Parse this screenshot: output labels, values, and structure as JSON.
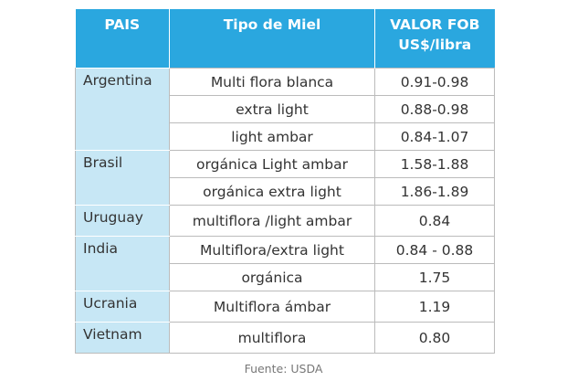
{
  "table": {
    "header": [
      "PAIS",
      "Tipo de Miel",
      [
        "VALOR FOB",
        "US$/libra"
      ]
    ],
    "groups": [
      {
        "country": "Argentina",
        "rows": [
          [
            "Multi flora blanca",
            "0.91-0.98"
          ],
          [
            "extra light",
            "0.88-0.98"
          ],
          [
            "light ambar",
            "0.84-1.07"
          ]
        ]
      },
      {
        "country": "Brasil",
        "rows": [
          [
            "orgánica Light ambar",
            "1.58-1.88"
          ],
          [
            "orgánica extra light",
            "1.86-1.89"
          ]
        ]
      },
      {
        "country": "Uruguay",
        "rows": [
          [
            "multiflora /light ambar",
            "0.84"
          ]
        ]
      },
      {
        "country": "India",
        "rows": [
          [
            "Multiflora/extra light",
            "0.84 - 0.88"
          ],
          [
            "orgánica",
            "1.75"
          ]
        ]
      },
      {
        "country": "Ucrania",
        "rows": [
          [
            "Multiflora ámbar",
            "1.19"
          ]
        ]
      },
      {
        "country": "Vietnam",
        "rows": [
          [
            "multiflora",
            "0.80"
          ]
        ]
      }
    ]
  },
  "source": "Fuente: USDA"
}
